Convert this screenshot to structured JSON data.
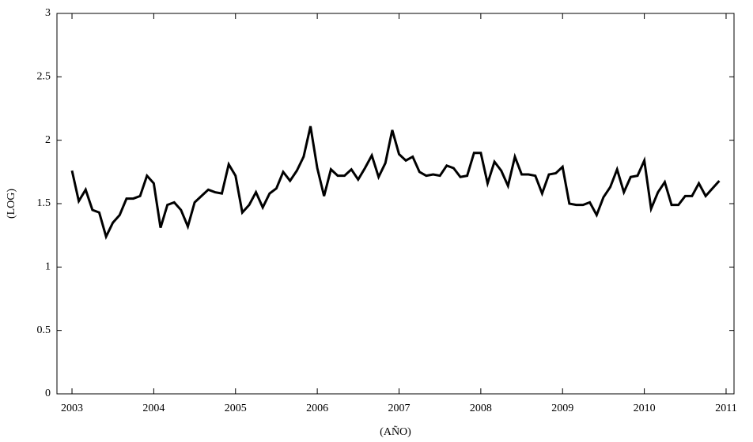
{
  "chart_data": {
    "type": "line",
    "xlabel": "(AÑO)",
    "ylabel": "(LOG)",
    "x": [
      2003,
      2003.083,
      2003.167,
      2003.25,
      2003.333,
      2003.417,
      2003.5,
      2003.583,
      2003.667,
      2003.75,
      2003.833,
      2003.917,
      2004,
      2004.083,
      2004.167,
      2004.25,
      2004.333,
      2004.417,
      2004.5,
      2004.583,
      2004.667,
      2004.75,
      2004.833,
      2004.917,
      2005,
      2005.083,
      2005.167,
      2005.25,
      2005.333,
      2005.417,
      2005.5,
      2005.583,
      2005.667,
      2005.75,
      2005.833,
      2005.917,
      2006,
      2006.083,
      2006.167,
      2006.25,
      2006.333,
      2006.417,
      2006.5,
      2006.583,
      2006.667,
      2006.75,
      2006.833,
      2006.917,
      2007,
      2007.083,
      2007.167,
      2007.25,
      2007.333,
      2007.417,
      2007.5,
      2007.583,
      2007.667,
      2007.75,
      2007.833,
      2007.917,
      2008,
      2008.083,
      2008.167,
      2008.25,
      2008.333,
      2008.417,
      2008.5,
      2008.583,
      2008.667,
      2008.75,
      2008.833,
      2008.917,
      2009,
      2009.083,
      2009.167,
      2009.25,
      2009.333,
      2009.417,
      2009.5,
      2009.583,
      2009.667,
      2009.75,
      2009.833,
      2009.917,
      2010,
      2010.083,
      2010.167,
      2010.25,
      2010.333,
      2010.417,
      2010.5,
      2010.583,
      2010.667,
      2010.75,
      2010.833,
      2010.917
    ],
    "series": [
      {
        "color": "#000000",
        "values": [
          1.76,
          1.52,
          1.61,
          1.45,
          1.43,
          1.24,
          1.35,
          1.41,
          1.54,
          1.54,
          1.56,
          1.72,
          1.66,
          1.31,
          1.49,
          1.51,
          1.45,
          1.32,
          1.51,
          1.56,
          1.61,
          1.59,
          1.58,
          1.81,
          1.72,
          1.43,
          1.49,
          1.59,
          1.47,
          1.58,
          1.62,
          1.75,
          1.68,
          1.76,
          1.87,
          2.11,
          1.78,
          1.56,
          1.77,
          1.72,
          1.72,
          1.77,
          1.69,
          1.78,
          1.88,
          1.71,
          1.82,
          2.08,
          1.89,
          1.84,
          1.87,
          1.75,
          1.72,
          1.73,
          1.72,
          1.8,
          1.78,
          1.71,
          1.72,
          1.9,
          1.9,
          1.66,
          1.83,
          1.76,
          1.64,
          1.87,
          1.73,
          1.73,
          1.72,
          1.58,
          1.73,
          1.74,
          1.79,
          1.5,
          1.49,
          1.49,
          1.51,
          1.41,
          1.55,
          1.63,
          1.77,
          1.59,
          1.71,
          1.72,
          1.84,
          1.46,
          1.59,
          1.67,
          1.49,
          1.49,
          1.56,
          1.56,
          1.66,
          1.56,
          1.62,
          1.68
        ]
      }
    ],
    "xlim": [
      2002.816,
      2011.097
    ],
    "xticks": [
      2003,
      2004,
      2005,
      2006,
      2007,
      2008,
      2009,
      2010,
      2011
    ],
    "ylim": [
      0,
      3
    ],
    "yticks": [
      0,
      0.5,
      1,
      1.5,
      2,
      2.5,
      3
    ]
  }
}
